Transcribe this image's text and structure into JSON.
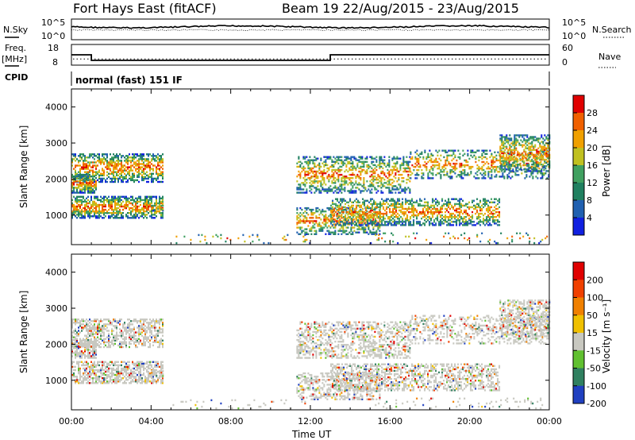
{
  "header": {
    "radar_title": "Fort Hays East (fitACF)",
    "beam_title": "Beam 19 22/Aug/2015 - 23/Aug/2015"
  },
  "labels": {
    "nsky": "N.Sky",
    "nsearch": "N.Search",
    "freq_line1": "Freq.",
    "freq_line2": "[MHz]",
    "nave": "Nave",
    "cpid": "CPID",
    "mode": "normal (fast) 151 IF",
    "x_axis": "Time UT",
    "y_axis": "Slant Range [km]",
    "power_cbar": "Power [dB]",
    "velocity_cbar": "Velocity [m s⁻¹]"
  },
  "colors": {
    "power": [
      "#1020e0",
      "#2060b0",
      "#208060",
      "#40a060",
      "#c0c020",
      "#f0a000",
      "#f06000",
      "#e00000"
    ],
    "velocity": [
      "#e00000",
      "#f04000",
      "#f08000",
      "#f0c000",
      "#c8c8c0",
      "#60c030",
      "#308060",
      "#2040c0"
    ],
    "ground_scatter": "#c8c8c0"
  },
  "chart_data": [
    {
      "type": "line",
      "title": "N.Sky / N.Search",
      "y_ticks_left": [
        "10^5",
        "10^0"
      ],
      "y_ticks_right": [
        "10^5",
        "10^0"
      ],
      "x_range_hours": [
        0,
        24
      ]
    },
    {
      "type": "line",
      "title": "Freq. / Nave",
      "y_ticks_left": [
        "18",
        "8"
      ],
      "y_ticks_right": [
        "60",
        "0"
      ],
      "frequency_mhz": {
        "x": [
          0,
          1.0,
          1.0,
          13.0,
          13.0,
          24
        ],
        "y": [
          13,
          13,
          10.3,
          10.3,
          13,
          13
        ]
      },
      "nave": 18
    },
    {
      "type": "heatmap",
      "title": "Power [dB]",
      "ylabel": "Slant Range [km]",
      "xlabel": "Time UT",
      "xlim_hours": [
        0,
        24
      ],
      "ylim_km": [
        180,
        4500
      ],
      "y_ticks": [
        "1000",
        "2000",
        "3000",
        "4000"
      ],
      "x_ticks": [
        "00:00",
        "04:00",
        "08:00",
        "12:00",
        "16:00",
        "20:00",
        "00:00"
      ],
      "colorbar_ticks": [
        "4",
        "8",
        "12",
        "16",
        "20",
        "24",
        "28"
      ],
      "colorbar_range": [
        0,
        30
      ]
    },
    {
      "type": "heatmap",
      "title": "Velocity [m s-1]",
      "ylabel": "Slant Range [km]",
      "xlabel": "Time UT",
      "xlim_hours": [
        0,
        24
      ],
      "ylim_km": [
        180,
        4500
      ],
      "y_ticks": [
        "1000",
        "2000",
        "3000",
        "4000"
      ],
      "x_ticks": [
        "00:00",
        "04:00",
        "08:00",
        "12:00",
        "16:00",
        "20:00",
        "00:00"
      ],
      "colorbar_ticks": [
        "200",
        "100",
        "50",
        "15",
        "-15",
        "-50",
        "-100",
        "-200"
      ]
    }
  ]
}
